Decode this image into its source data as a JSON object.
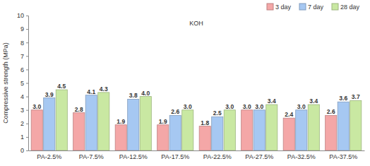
{
  "chart_data": {
    "type": "bar",
    "annotations": [
      "KOH"
    ],
    "y_label": "Compressive strength (MPa)",
    "categories": [
      "PA-2.5%",
      "PA-7.5%",
      "PA-12.5%",
      "PA-17.5%",
      "PA-22.5%",
      "PA-27.5%",
      "PA-32.5%",
      "PA-37.5%"
    ],
    "series": [
      {
        "name": "3 day",
        "color": "#f4a7a7",
        "values": [
          3.0,
          2.8,
          1.9,
          1.9,
          1.8,
          3.0,
          2.4,
          2.6
        ],
        "value_labels": [
          "3.0",
          "2.8",
          "1.9",
          "1.9",
          "1.8",
          "3.0",
          "2.4",
          "2.6"
        ]
      },
      {
        "name": "7 day",
        "color": "#a6c8f2",
        "values": [
          3.9,
          4.1,
          3.8,
          2.6,
          2.5,
          3.0,
          3.0,
          3.6
        ],
        "value_labels": [
          "3.9",
          "4.1",
          "3.8",
          "2.6",
          "2.5",
          "3.0",
          "3.0",
          "3.6"
        ]
      },
      {
        "name": "28 day",
        "color": "#c9e8a2",
        "values": [
          4.5,
          4.3,
          4.0,
          3.0,
          3.0,
          3.4,
          3.4,
          3.7
        ],
        "value_labels": [
          "4.5",
          "4.3",
          "4.0",
          "3.0",
          "3.0",
          "3.4",
          "3.4",
          "3.7"
        ]
      }
    ],
    "ylim": [
      0,
      10
    ],
    "yticks": [
      0,
      1,
      2,
      3,
      4,
      5,
      6,
      7,
      8,
      9,
      10
    ],
    "grid": false,
    "legend": "top-right",
    "data_labels": true
  }
}
